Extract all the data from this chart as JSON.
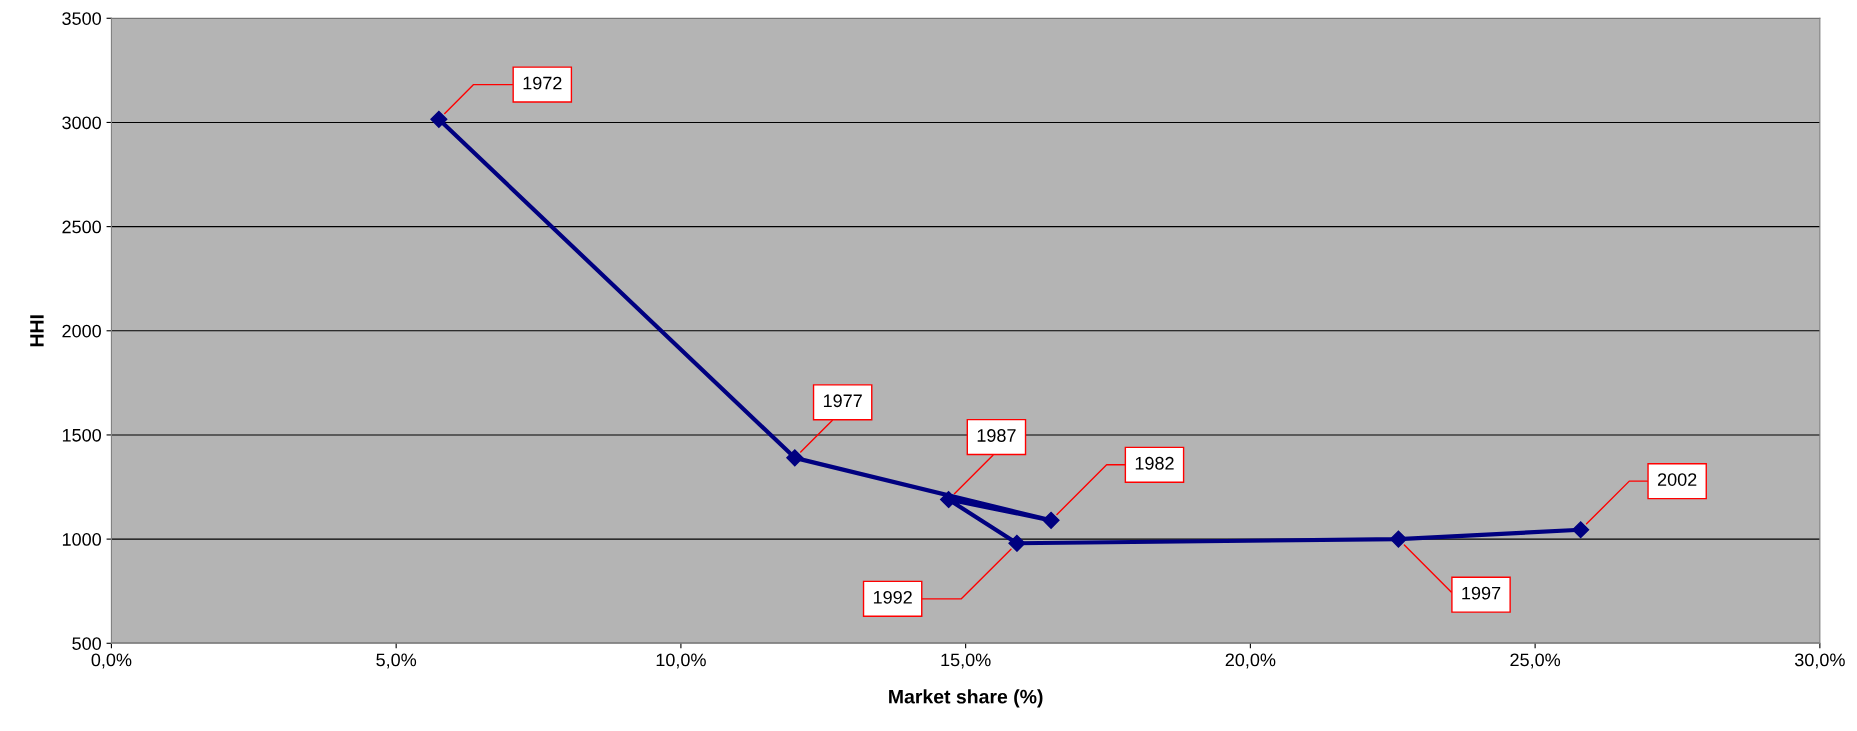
{
  "chart_data": {
    "type": "line",
    "xlabel": "Market share (%)",
    "ylabel": "HHI",
    "x": [
      5.75,
      12.0,
      16.5,
      14.7,
      15.9,
      22.6,
      25.8
    ],
    "series": [
      {
        "color": "#000080",
        "values": [
          3015,
          1390,
          1090,
          1190,
          980,
          1000,
          1045
        ]
      }
    ],
    "marker": "diamond",
    "grid": "y",
    "xlim": [
      0,
      30
    ],
    "xticks": [
      {
        "value": 0,
        "label": "0,0%"
      },
      {
        "value": 5,
        "label": "5,0%"
      },
      {
        "value": 10,
        "label": "10,0%"
      },
      {
        "value": 15,
        "label": "15,0%"
      },
      {
        "value": 20,
        "label": "20,0%"
      },
      {
        "value": 25,
        "label": "25,0%"
      },
      {
        "value": 30,
        "label": "30,0%"
      }
    ],
    "ylim": [
      500,
      3500
    ],
    "yticks": [
      500,
      1000,
      1500,
      2000,
      2500,
      3000,
      3500
    ],
    "annotations": [
      {
        "text": "1972",
        "x": 5.75,
        "y": 3015
      },
      {
        "text": "1977",
        "x": 12.0,
        "y": 1390
      },
      {
        "text": "1982",
        "x": 16.5,
        "y": 1090
      },
      {
        "text": "1987",
        "x": 14.7,
        "y": 1190
      },
      {
        "text": "1992",
        "x": 15.9,
        "y": 980
      },
      {
        "text": "1997",
        "x": 22.6,
        "y": 1000
      },
      {
        "text": "2002",
        "x": 25.8,
        "y": 1045
      }
    ]
  }
}
